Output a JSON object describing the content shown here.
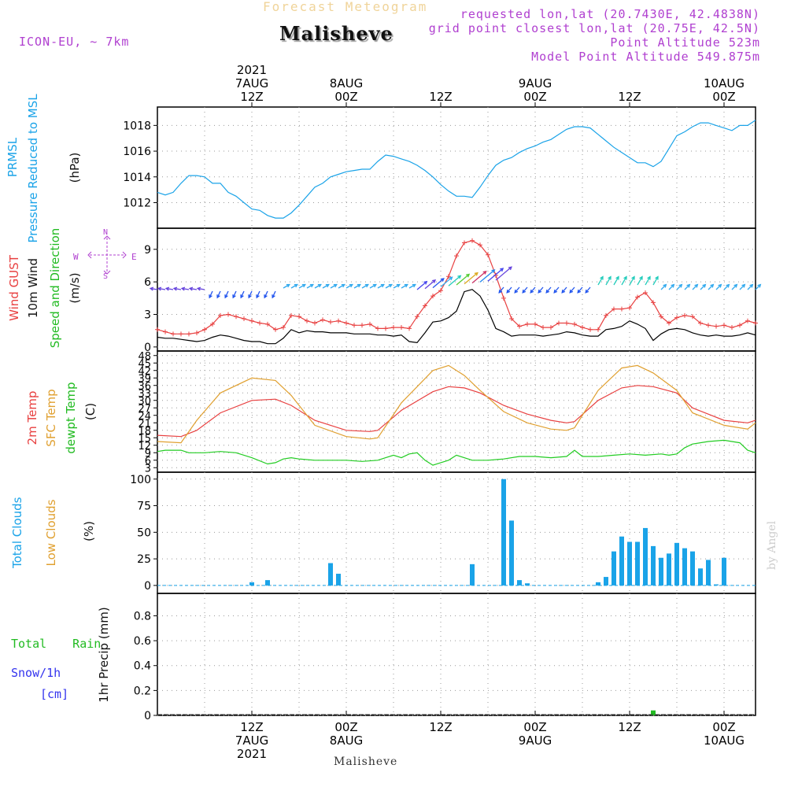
{
  "header": {
    "top_title": "Forecast Meteogram",
    "location": "Malisheve",
    "model": "ICON-EU, ~ 7km",
    "requested": "requested lon,lat (20.7430E, 42.4838N)",
    "grid_point": "grid point closest lon,lat (20.75E, 42.5N)",
    "point_altitude": "Point Altitude 523m",
    "model_altitude": "Model Point Altitude 549.875m"
  },
  "footer": {
    "location": "Malisheve",
    "credit": "by Angel"
  },
  "colors": {
    "pressure": "#1aa3e8",
    "gust": "#e84040",
    "wind": "#000000",
    "dir": "#22bb22",
    "temp2m": "#e84040",
    "sfc": "#e0a030",
    "dewpt": "#22cc22",
    "total_clouds": "#1aa3e8",
    "low_clouds": "#e0a030",
    "rain": "#22bb22",
    "snow": "#3333ee",
    "purple": "#b040d0"
  },
  "time_axis": {
    "top_labels": [
      {
        "x": 12,
        "lines": [
          "2021",
          "7AUG",
          "12Z"
        ]
      },
      {
        "x": 24,
        "lines": [
          "8AUG",
          "00Z"
        ]
      },
      {
        "x": 36,
        "lines": [
          "12Z"
        ]
      },
      {
        "x": 48,
        "lines": [
          "9AUG",
          "00Z"
        ]
      },
      {
        "x": 60,
        "lines": [
          "12Z"
        ]
      },
      {
        "x": 72,
        "lines": [
          "10AUG",
          "00Z"
        ]
      }
    ],
    "bottom_labels": [
      {
        "x": 12,
        "lines": [
          "12Z",
          "7AUG",
          "2021"
        ]
      },
      {
        "x": 24,
        "lines": [
          "00Z",
          "8AUG"
        ]
      },
      {
        "x": 36,
        "lines": [
          "12Z"
        ]
      },
      {
        "x": 48,
        "lines": [
          "00Z",
          "9AUG"
        ]
      },
      {
        "x": 60,
        "lines": [
          "12Z"
        ]
      },
      {
        "x": 72,
        "lines": [
          "00Z",
          "10AUG"
        ]
      }
    ]
  },
  "chart_data": [
    {
      "type": "line",
      "id": "pressure",
      "ylabel_lines": [
        "PRMSL",
        "Pressure Reduced to MSL"
      ],
      "unit": "(hPa)",
      "xlim": [
        0,
        76
      ],
      "ylim": [
        1010.5,
        1019
      ],
      "yticks": [
        1012,
        1014,
        1016,
        1018
      ],
      "series": [
        {
          "name": "PRMSL",
          "x": [
            0,
            1,
            2,
            3,
            4,
            5,
            6,
            7,
            8,
            9,
            10,
            11,
            12,
            13,
            14,
            15,
            16,
            17,
            18,
            19,
            20,
            21,
            22,
            23,
            24,
            25,
            26,
            27,
            28,
            29,
            30,
            31,
            32,
            33,
            34,
            35,
            36,
            37,
            38,
            39,
            40,
            41,
            42,
            43,
            44,
            45,
            46,
            47,
            48,
            49,
            50,
            51,
            52,
            53,
            54,
            55,
            56,
            57,
            58,
            59,
            60,
            61,
            62,
            63,
            64,
            65,
            66,
            67,
            68,
            69,
            70,
            71,
            72,
            73,
            74,
            75,
            76
          ],
          "values": [
            1012.8,
            1012.6,
            1012.8,
            1013.5,
            1014.1,
            1014.1,
            1014.0,
            1013.5,
            1013.5,
            1012.8,
            1012.5,
            1012.0,
            1011.5,
            1011.4,
            1011.0,
            1010.8,
            1010.8,
            1011.2,
            1011.8,
            1012.5,
            1013.2,
            1013.5,
            1014.0,
            1014.2,
            1014.4,
            1014.5,
            1014.6,
            1014.6,
            1015.2,
            1015.7,
            1015.6,
            1015.4,
            1015.2,
            1014.9,
            1014.5,
            1014.0,
            1013.4,
            1012.9,
            1012.5,
            1012.5,
            1012.4,
            1013.2,
            1014.1,
            1014.9,
            1015.3,
            1015.5,
            1015.9,
            1016.2,
            1016.4,
            1016.7,
            1016.9,
            1017.3,
            1017.7,
            1017.9,
            1017.9,
            1017.8,
            1017.3,
            1016.8,
            1016.3,
            1015.9,
            1015.5,
            1015.1,
            1015.1,
            1014.8,
            1015.2,
            1016.2,
            1017.2,
            1017.5,
            1017.9,
            1018.2,
            1018.2,
            1018.0,
            1017.8,
            1017.6,
            1018.0,
            1018.0,
            1018.4
          ]
        }
      ]
    },
    {
      "type": "line",
      "id": "wind",
      "ylabel_lines": [
        "Wind GUST",
        "10m Wind",
        "Speed and Direction"
      ],
      "unit": "(m/s)",
      "compass": {
        "n": "N",
        "s": "S",
        "e": "E",
        "w": "W"
      },
      "xlim": [
        0,
        76
      ],
      "ylim": [
        -0.3,
        10.8
      ],
      "yticks": [
        0,
        3,
        6,
        9
      ],
      "series": [
        {
          "name": "Wind GUST",
          "x": [
            0,
            1,
            2,
            3,
            4,
            5,
            6,
            7,
            8,
            9,
            10,
            11,
            12,
            13,
            14,
            15,
            16,
            17,
            18,
            19,
            20,
            21,
            22,
            23,
            24,
            25,
            26,
            27,
            28,
            29,
            30,
            31,
            32,
            33,
            34,
            35,
            36,
            37,
            38,
            39,
            40,
            41,
            42,
            43,
            44,
            45,
            46,
            47,
            48,
            49,
            50,
            51,
            52,
            53,
            54,
            55,
            56,
            57,
            58,
            59,
            60,
            61,
            62,
            63,
            64,
            65,
            66,
            67,
            68,
            69,
            70,
            71,
            72,
            73,
            74,
            75,
            76
          ],
          "values": [
            1.6,
            1.4,
            1.2,
            1.2,
            1.2,
            1.3,
            1.6,
            2.1,
            2.9,
            3.0,
            2.8,
            2.6,
            2.4,
            2.2,
            2.1,
            1.6,
            1.8,
            2.9,
            2.8,
            2.4,
            2.2,
            2.5,
            2.3,
            2.4,
            2.2,
            2.0,
            2.0,
            2.1,
            1.7,
            1.7,
            1.8,
            1.8,
            1.7,
            2.8,
            3.8,
            4.7,
            5.2,
            6.5,
            8.4,
            9.6,
            9.8,
            9.4,
            8.5,
            6.6,
            4.5,
            2.6,
            1.9,
            2.1,
            2.1,
            1.8,
            1.8,
            2.2,
            2.2,
            2.1,
            1.8,
            1.6,
            1.6,
            2.9,
            3.5,
            3.5,
            3.6,
            4.6,
            5.0,
            4.1,
            2.8,
            2.2,
            2.7,
            2.9,
            2.8,
            2.2,
            2.0,
            1.9,
            2.0,
            1.8,
            2.0,
            2.4,
            2.2
          ]
        },
        {
          "name": "10m Wind",
          "x": [
            0,
            1,
            2,
            3,
            4,
            5,
            6,
            7,
            8,
            9,
            10,
            11,
            12,
            13,
            14,
            15,
            16,
            17,
            18,
            19,
            20,
            21,
            22,
            23,
            24,
            25,
            26,
            27,
            28,
            29,
            30,
            31,
            32,
            33,
            34,
            35,
            36,
            37,
            38,
            39,
            40,
            41,
            42,
            43,
            44,
            45,
            46,
            47,
            48,
            49,
            50,
            51,
            52,
            53,
            54,
            55,
            56,
            57,
            58,
            59,
            60,
            61,
            62,
            63,
            64,
            65,
            66,
            67,
            68,
            69,
            70,
            71,
            72,
            73,
            74,
            75,
            76
          ],
          "values": [
            0.9,
            0.8,
            0.8,
            0.7,
            0.6,
            0.5,
            0.6,
            0.9,
            1.1,
            1.0,
            0.8,
            0.6,
            0.5,
            0.5,
            0.3,
            0.3,
            0.8,
            1.6,
            1.3,
            1.5,
            1.4,
            1.4,
            1.3,
            1.3,
            1.3,
            1.2,
            1.2,
            1.2,
            1.1,
            1.1,
            1.0,
            1.1,
            0.5,
            0.4,
            1.3,
            2.3,
            2.4,
            2.7,
            3.3,
            5.1,
            5.3,
            4.7,
            3.4,
            1.7,
            1.4,
            1.0,
            1.1,
            1.1,
            1.1,
            1.0,
            1.1,
            1.2,
            1.4,
            1.3,
            1.1,
            1.0,
            1.0,
            1.6,
            1.7,
            1.9,
            2.4,
            2.1,
            1.7,
            0.6,
            1.2,
            1.6,
            1.7,
            1.6,
            1.3,
            1.1,
            1.0,
            1.1,
            1.0,
            1.0,
            1.1,
            1.3,
            1.1
          ]
        }
      ]
    },
    {
      "type": "line",
      "id": "temperature",
      "ylabel_lines": [
        "2m Temp",
        "SFC Temp",
        "dewpt Temp"
      ],
      "unit": "(C)",
      "xlim": [
        0,
        76
      ],
      "ylim": [
        1.5,
        49.5
      ],
      "yticks": [
        3,
        6,
        9,
        12,
        15,
        18,
        21,
        24,
        27,
        30,
        33,
        36,
        39,
        42,
        45,
        48
      ],
      "series": [
        {
          "name": "2m Temp",
          "x": [
            0,
            3,
            5,
            8,
            12,
            15,
            17,
            20,
            24,
            27,
            28,
            31,
            35,
            37,
            39,
            41,
            44,
            47,
            50,
            52,
            53,
            56,
            59,
            61,
            63,
            66,
            68,
            72,
            75,
            76
          ],
          "values": [
            16,
            15.5,
            18,
            25,
            30,
            30.5,
            28,
            22,
            18,
            17.5,
            18,
            26,
            33.5,
            35.5,
            35,
            33,
            28,
            24.5,
            22,
            21,
            21.5,
            30,
            35,
            36,
            35.5,
            33,
            27,
            22,
            21,
            22
          ]
        },
        {
          "name": "SFC Temp",
          "x": [
            0,
            3,
            5,
            8,
            12,
            15,
            17,
            20,
            24,
            27,
            28,
            31,
            35,
            37,
            39,
            41,
            44,
            47,
            50,
            52,
            53,
            56,
            59,
            61,
            63,
            66,
            68,
            72,
            75,
            76
          ],
          "values": [
            13.5,
            13,
            22,
            33,
            39,
            38,
            32,
            20,
            15.5,
            14.5,
            15,
            29,
            42,
            44,
            40,
            34,
            25.5,
            21,
            18.5,
            18,
            19,
            34,
            43,
            44,
            41,
            34,
            25,
            20,
            18.5,
            21
          ]
        },
        {
          "name": "dewpt Temp",
          "x": [
            0,
            1,
            3,
            4,
            5,
            6,
            8,
            10,
            12,
            14,
            15,
            16,
            17,
            18,
            20,
            24,
            26,
            28,
            29,
            30,
            31,
            32,
            33,
            34,
            35,
            36,
            37,
            38,
            40,
            42,
            44,
            46,
            48,
            50,
            52,
            53,
            54,
            56,
            58,
            60,
            62,
            64,
            65,
            66,
            67,
            68,
            70,
            72,
            74,
            75,
            76
          ],
          "values": [
            9.5,
            10,
            10,
            9,
            9,
            9,
            9.5,
            9,
            7,
            4.5,
            5,
            6.5,
            7,
            6.5,
            6,
            6,
            5.5,
            6,
            7,
            8,
            7,
            8.5,
            9,
            6,
            4,
            5,
            6,
            8,
            6,
            6,
            6.5,
            7.5,
            7.5,
            7,
            7.5,
            10,
            7.5,
            7.5,
            8,
            8.5,
            8,
            8.5,
            8,
            8.5,
            11,
            12.5,
            13.5,
            14,
            13,
            10,
            9
          ]
        }
      ]
    },
    {
      "type": "bar",
      "id": "clouds",
      "ylabel_lines": [
        "Total Clouds",
        "Low Clouds"
      ],
      "unit": "(%)",
      "xlim": [
        0,
        76
      ],
      "ylim": [
        -6,
        105
      ],
      "yticks": [
        0,
        25,
        50,
        75,
        100
      ],
      "series": [
        {
          "name": "Total Clouds",
          "x": [
            12,
            14,
            22,
            23,
            40,
            44,
            45,
            46,
            47,
            56,
            57,
            58,
            59,
            60,
            61,
            62,
            63,
            64,
            65,
            66,
            67,
            68,
            69,
            70,
            71,
            72
          ],
          "values": [
            3,
            5,
            21,
            11,
            20,
            100,
            61,
            5,
            2,
            3,
            8,
            32,
            46,
            41,
            41,
            54,
            37,
            26,
            30,
            40,
            35,
            32,
            16,
            24,
            1,
            26
          ]
        },
        {
          "name": "Low Clouds",
          "x": [],
          "values": []
        }
      ]
    },
    {
      "type": "bar",
      "id": "precip",
      "ylabel_lines": [
        "1hr Precip (mm)"
      ],
      "legend_total_rain": "Total Rain",
      "legend_snow": "Snow/1h",
      "legend_cm": "[cm]",
      "xlim": [
        0,
        76
      ],
      "ylim": [
        0,
        0.98
      ],
      "yticks": [
        0,
        0.2,
        0.4,
        0.6,
        0.8
      ],
      "series": [
        {
          "name": "Total Rain",
          "x": [
            63
          ],
          "values": [
            0.04
          ]
        }
      ]
    }
  ]
}
